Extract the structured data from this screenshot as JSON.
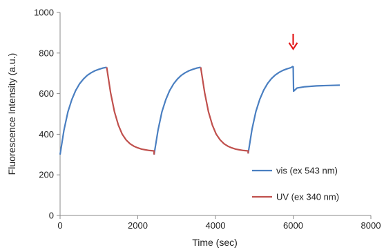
{
  "chart_data": {
    "type": "line",
    "title": "",
    "xlabel": "Time (sec)",
    "ylabel": "Fluorescence Intensity (a.u.)",
    "xlim": [
      0,
      8000
    ],
    "ylim": [
      0,
      1000
    ],
    "x_ticks": [
      0,
      2000,
      4000,
      6000,
      8000
    ],
    "y_ticks": [
      0,
      200,
      400,
      600,
      800,
      1000
    ],
    "grid": false,
    "legend_position": "bottom-right",
    "colors": {
      "vis": "#4a7fc1",
      "uv": "#c0504d",
      "marker": "#e31a1c"
    },
    "annotations": [
      {
        "type": "arrow",
        "x": 6000,
        "y": 820,
        "direction": "down"
      }
    ],
    "series": [
      {
        "name": "vis (ex 543 nm)",
        "segments": [
          [
            [
              0,
              300
            ],
            [
              100,
              420
            ],
            [
              200,
              510
            ],
            [
              300,
              570
            ],
            [
              400,
              615
            ],
            [
              500,
              648
            ],
            [
              600,
              672
            ],
            [
              700,
              690
            ],
            [
              800,
              703
            ],
            [
              900,
              713
            ],
            [
              1000,
              720
            ],
            [
              1100,
              726
            ],
            [
              1200,
              730
            ]
          ],
          [
            [
              2420,
              300
            ],
            [
              2520,
              420
            ],
            [
              2620,
              510
            ],
            [
              2720,
              570
            ],
            [
              2820,
              615
            ],
            [
              2920,
              648
            ],
            [
              3020,
              672
            ],
            [
              3120,
              690
            ],
            [
              3220,
              703
            ],
            [
              3320,
              713
            ],
            [
              3420,
              720
            ],
            [
              3520,
              726
            ],
            [
              3620,
              730
            ]
          ],
          [
            [
              4840,
              305
            ],
            [
              4940,
              425
            ],
            [
              5040,
              512
            ],
            [
              5140,
              572
            ],
            [
              5240,
              617
            ],
            [
              5340,
              650
            ],
            [
              5440,
              674
            ],
            [
              5540,
              692
            ],
            [
              5640,
              705
            ],
            [
              5740,
              715
            ],
            [
              5840,
              722
            ],
            [
              5940,
              728
            ],
            [
              6000,
              735
            ]
          ],
          [
            [
              6000,
              735
            ],
            [
              6010,
              612
            ],
            [
              6100,
              628
            ],
            [
              6300,
              634
            ],
            [
              6600,
              638
            ],
            [
              6900,
              640
            ],
            [
              7200,
              642
            ]
          ]
        ]
      },
      {
        "name": "UV (ex 340 nm)",
        "segments": [
          [
            [
              1200,
              730
            ],
            [
              1300,
              605
            ],
            [
              1400,
              510
            ],
            [
              1500,
              445
            ],
            [
              1600,
              400
            ],
            [
              1700,
              372
            ],
            [
              1800,
              353
            ],
            [
              1900,
              341
            ],
            [
              2000,
              333
            ],
            [
              2100,
              327
            ],
            [
              2200,
              323
            ],
            [
              2300,
              320
            ],
            [
              2420,
              318
            ],
            [
              2420,
              300
            ]
          ],
          [
            [
              3620,
              730
            ],
            [
              3720,
              605
            ],
            [
              3820,
              510
            ],
            [
              3920,
              445
            ],
            [
              4020,
              400
            ],
            [
              4120,
              372
            ],
            [
              4220,
              353
            ],
            [
              4320,
              341
            ],
            [
              4420,
              333
            ],
            [
              4520,
              327
            ],
            [
              4620,
              323
            ],
            [
              4720,
              320
            ],
            [
              4840,
              318
            ],
            [
              4840,
              305
            ]
          ]
        ]
      }
    ]
  }
}
